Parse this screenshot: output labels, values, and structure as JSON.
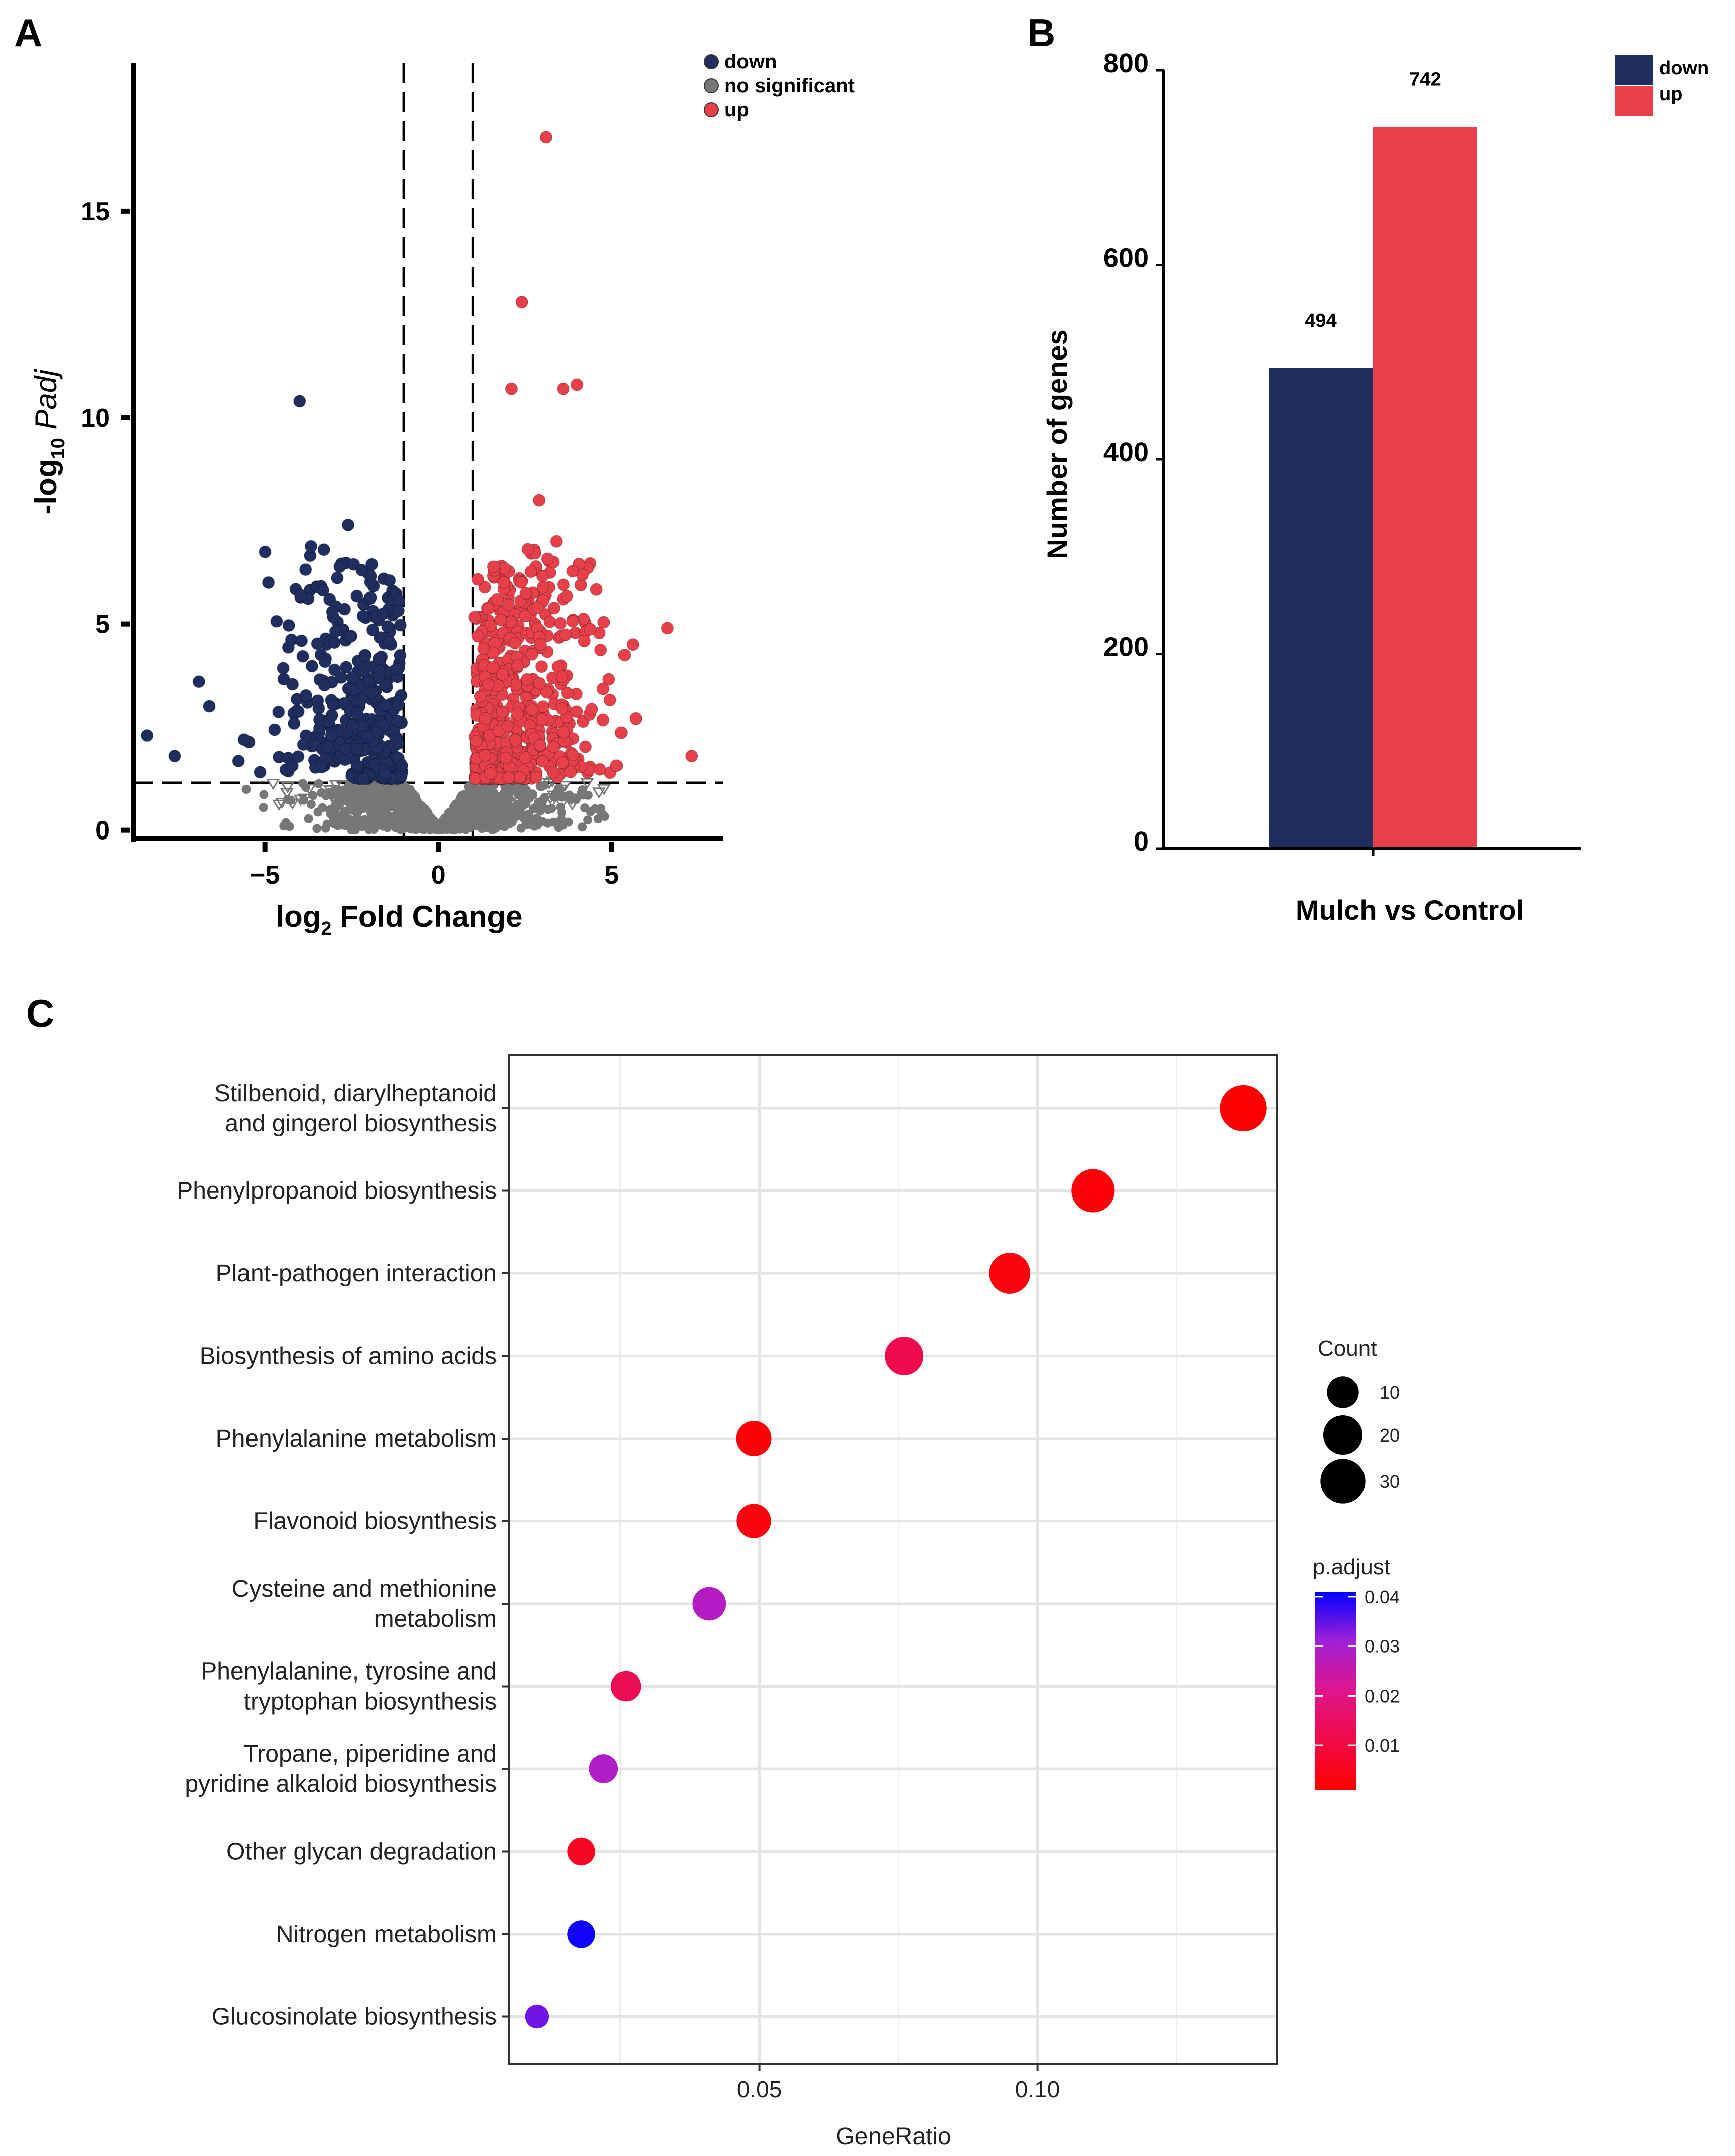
{
  "panels": {
    "a": "A",
    "b": "B",
    "c": "C"
  },
  "colors": {
    "down": "#1f2e5e",
    "up": "#e8404a",
    "ns": "#777777"
  },
  "chart_data": [
    {
      "id": "volcano",
      "type": "scatter",
      "xlabel_main": "log",
      "xlabel_sub": "2",
      "xlabel_rest": " Fold Change",
      "ylabel_main": "-log",
      "ylabel_sub": "10",
      "ylabel_rest": " Padj",
      "xlim": [
        -8.8,
        8.2
      ],
      "ylim": [
        -0.2,
        18.6
      ],
      "xticks": [
        -5,
        0,
        5
      ],
      "yticks": [
        0,
        5,
        10,
        15
      ],
      "fc_threshold": 1,
      "padj_threshold": 1.15,
      "legend": [
        "down",
        "no significant",
        "up"
      ],
      "highlight_points": {
        "down": [
          [
            -4.0,
            10.4
          ],
          [
            -2.6,
            7.4
          ],
          [
            -8.4,
            2.3
          ],
          [
            -7.6,
            1.8
          ],
          [
            -6.9,
            3.6
          ],
          [
            -6.6,
            3.0
          ],
          [
            -5.6,
            2.2
          ],
          [
            -4.9,
            6.0
          ],
          [
            -3.3,
            6.8
          ],
          [
            -2.2,
            6.3
          ]
        ],
        "up": [
          [
            3.1,
            16.8
          ],
          [
            2.4,
            12.8
          ],
          [
            3.6,
            10.7
          ],
          [
            4.0,
            10.8
          ],
          [
            2.1,
            10.7
          ],
          [
            7.3,
            1.8
          ],
          [
            6.6,
            4.9
          ],
          [
            5.6,
            4.5
          ],
          [
            3.4,
            7.0
          ],
          [
            2.9,
            8.0
          ]
        ]
      }
    },
    {
      "id": "deg-bar",
      "type": "bar",
      "categories": [
        "Mulch vs Control"
      ],
      "series": [
        {
          "name": "down",
          "values": [
            494
          ]
        },
        {
          "name": "up",
          "values": [
            742
          ]
        }
      ],
      "value_labels": [
        "494",
        "742"
      ],
      "xlabel": "Mulch vs Control",
      "ylabel": "Number of genes",
      "ylim": [
        0,
        800
      ],
      "yticks": [
        0,
        200,
        400,
        600,
        800
      ],
      "legend": [
        "down",
        "up"
      ]
    },
    {
      "id": "kegg-dot",
      "type": "scatter",
      "xlabel": "GeneRatio",
      "xlim": [
        0.005,
        0.143
      ],
      "xticks": [
        0.05,
        0.1
      ],
      "xtick_labels": [
        "0.05",
        "0.10"
      ],
      "terms": [
        {
          "lines": [
            "Stilbenoid, diarylheptanoid",
            "and gingerol biosynthesis"
          ],
          "gene_ratio": 0.137,
          "count": 33,
          "padj": 0.001
        },
        {
          "lines": [
            "Phenylpropanoid biosynthesis"
          ],
          "gene_ratio": 0.11,
          "count": 27,
          "padj": 0.002
        },
        {
          "lines": [
            "Plant-pathogen interaction"
          ],
          "gene_ratio": 0.095,
          "count": 23,
          "padj": 0.003
        },
        {
          "lines": [
            "Biosynthesis of amino acids"
          ],
          "gene_ratio": 0.076,
          "count": 19,
          "padj": 0.012
        },
        {
          "lines": [
            "Phenylalanine metabolism"
          ],
          "gene_ratio": 0.049,
          "count": 14,
          "padj": 0.002
        },
        {
          "lines": [
            "Flavonoid biosynthesis"
          ],
          "gene_ratio": 0.049,
          "count": 13,
          "padj": 0.003
        },
        {
          "lines": [
            "Cysteine and methionine",
            "metabolism"
          ],
          "gene_ratio": 0.041,
          "count": 12,
          "padj": 0.028
        },
        {
          "lines": [
            "Phenylalanine, tyrosine and",
            "tryptophan biosynthesis"
          ],
          "gene_ratio": 0.026,
          "count": 8,
          "padj": 0.013
        },
        {
          "lines": [
            "Tropane, piperidine and",
            "pyridine alkaloid biosynthesis"
          ],
          "gene_ratio": 0.022,
          "count": 7,
          "padj": 0.029
        },
        {
          "lines": [
            "Other glycan degradation"
          ],
          "gene_ratio": 0.018,
          "count": 6,
          "padj": 0.006
        },
        {
          "lines": [
            "Nitrogen metabolism"
          ],
          "gene_ratio": 0.018,
          "count": 6,
          "padj": 0.04
        },
        {
          "lines": [
            "Glucosinolate biosynthesis"
          ],
          "gene_ratio": 0.01,
          "count": 3,
          "padj": 0.034
        }
      ],
      "size_legend": {
        "title": "Count",
        "values": [
          10,
          20,
          30
        ],
        "labels": [
          "10",
          "20",
          "30"
        ]
      },
      "color_legend": {
        "title": "p.adjust",
        "range": [
          0.001,
          0.041
        ],
        "ticks": [
          0.01,
          0.02,
          0.03,
          0.04
        ],
        "labels": [
          "0.01",
          "0.02",
          "0.03",
          "0.04"
        ],
        "low_color": "#ff0000",
        "high_color": "#0000ff"
      }
    }
  ]
}
